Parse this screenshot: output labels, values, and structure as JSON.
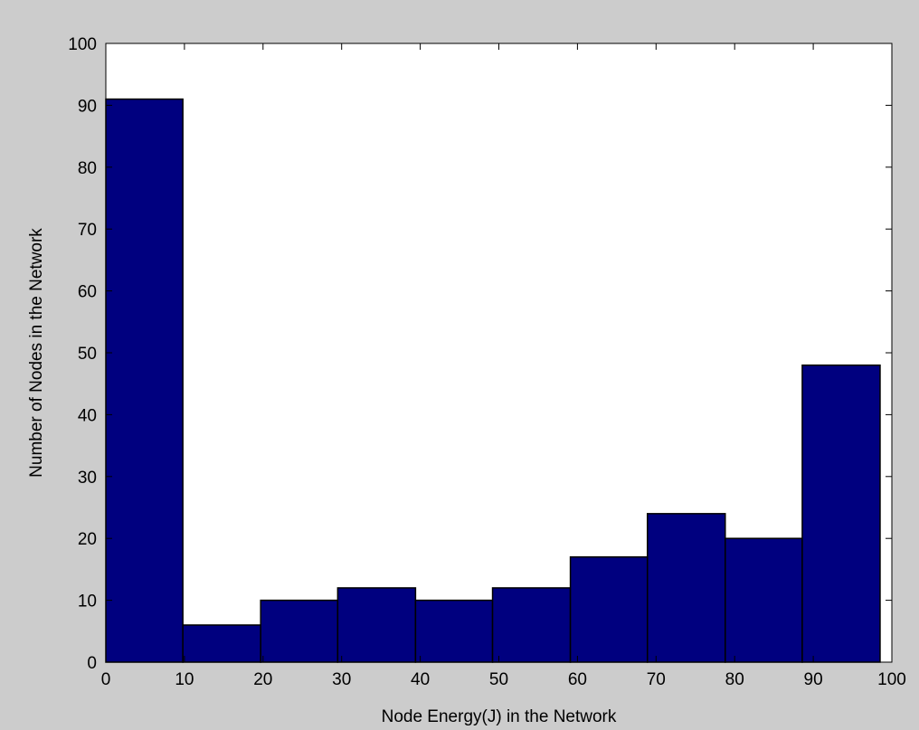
{
  "colors": {
    "figure_background": "#cccccc",
    "axes_background": "#ffffff",
    "bar_fill": "#00007f",
    "bar_edge": "#000000"
  },
  "chart_data": {
    "type": "bar",
    "title": "",
    "xlabel": "Node Energy(J) in the Network",
    "ylabel": "Number of Nodes in the Network",
    "xlim": [
      0,
      100
    ],
    "ylim": [
      0,
      100
    ],
    "xticks": [
      0,
      10,
      20,
      30,
      40,
      50,
      60,
      70,
      80,
      90,
      100
    ],
    "yticks": [
      0,
      10,
      20,
      30,
      40,
      50,
      60,
      70,
      80,
      90,
      100
    ],
    "grid": false,
    "bin_edges": [
      0,
      9.8,
      19.7,
      29.5,
      39.4,
      49.2,
      59.1,
      68.9,
      78.8,
      88.6,
      98.5
    ],
    "values": [
      91,
      6,
      10,
      12,
      10,
      12,
      17,
      24,
      20,
      48
    ]
  }
}
